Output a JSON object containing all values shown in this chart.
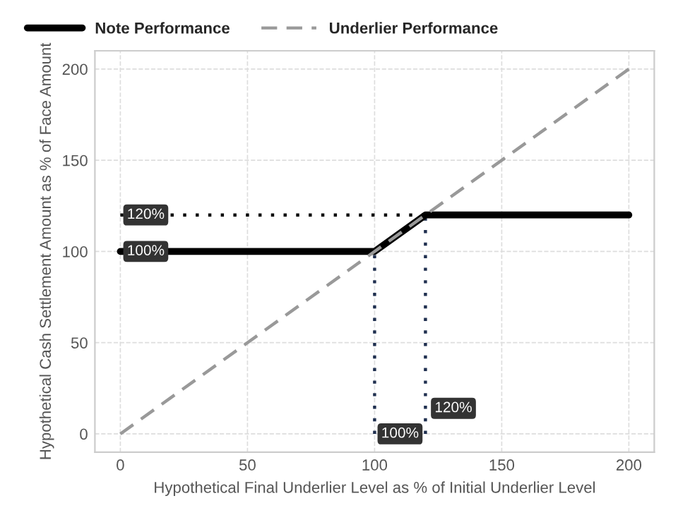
{
  "chart_data": {
    "type": "line",
    "xlabel": "Hypothetical Final Underlier Level as % of Initial Underlier Level",
    "ylabel": "Hypothetical Cash Settlement Amount as % of Face Amount",
    "series": [
      {
        "name": "Note Performance",
        "color": "#000000",
        "x": [
          0,
          100,
          120,
          200
        ],
        "values": [
          100,
          100,
          120,
          120
        ],
        "line_style": "solid"
      },
      {
        "name": "Underlier Performance",
        "color": "#999999",
        "x": [
          0,
          200
        ],
        "values": [
          0,
          200
        ],
        "line_style": "dashed"
      },
      {
        "color": "#000000",
        "x": [
          0,
          120
        ],
        "values": [
          120,
          120
        ],
        "line_style": "dotted"
      },
      {
        "color": "#1f2f4f",
        "x": [
          100,
          100
        ],
        "values": [
          0,
          100
        ],
        "line_style": "dotted"
      },
      {
        "color": "#1f2f4f",
        "x": [
          120,
          120
        ],
        "values": [
          0,
          120
        ],
        "line_style": "dotted"
      }
    ],
    "annotations": [
      {
        "text": "120%",
        "x": 10,
        "y": 120
      },
      {
        "text": "100%",
        "x": 10,
        "y": 100
      },
      {
        "text": "100%",
        "x": 110,
        "y": 0
      },
      {
        "text": "120%",
        "x": 131,
        "y": 14
      }
    ],
    "xlim": [
      -10,
      210
    ],
    "ylim": [
      -10,
      210
    ],
    "xticks": [
      0,
      50,
      100,
      150,
      200
    ],
    "yticks": [
      0,
      50,
      100,
      150,
      200
    ],
    "grid": true,
    "legend": "top"
  }
}
